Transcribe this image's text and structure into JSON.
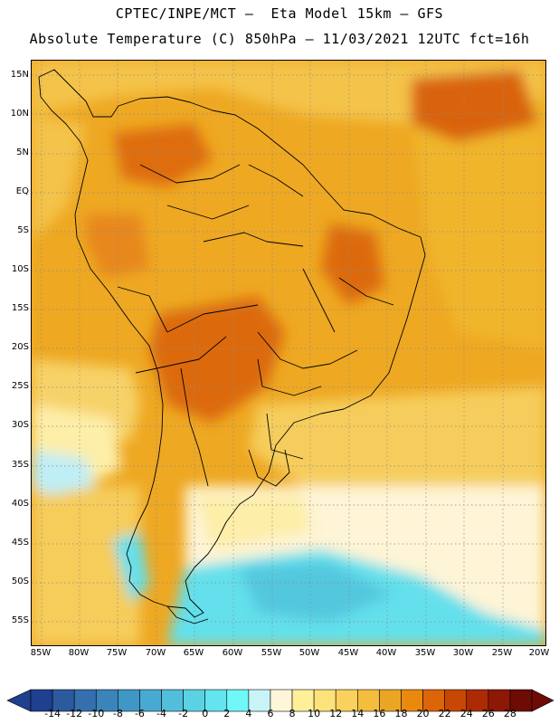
{
  "header": {
    "line1": "CPTEC/INPE/MCT –  Eta Model 15km – GFS",
    "line2": "Absolute Temperature (C) 850hPa – 11/03/2021 12UTC fct=16h"
  },
  "axes": {
    "lat_labels": [
      "15N",
      "10N",
      "5N",
      "EQ",
      "5S",
      "10S",
      "15S",
      "20S",
      "25S",
      "30S",
      "35S",
      "40S",
      "45S",
      "50S",
      "55S"
    ],
    "lon_labels": [
      "85W",
      "80W",
      "75W",
      "70W",
      "65W",
      "60W",
      "55W",
      "50W",
      "45W",
      "40W",
      "35W",
      "30W",
      "25W",
      "20W"
    ],
    "lat_range": [
      -58,
      16
    ],
    "lon_range": [
      -86,
      -20
    ],
    "grid": "dotted"
  },
  "colorbar": {
    "values": [
      "-14",
      "-12",
      "-10",
      "-8",
      "-6",
      "-4",
      "-2",
      "0",
      "2",
      "4",
      "6",
      "8",
      "10",
      "12",
      "14",
      "16",
      "18",
      "20",
      "22",
      "24",
      "26",
      "28"
    ],
    "colors": [
      "#1f3f8f",
      "#2c5a9f",
      "#3470ad",
      "#3a84ba",
      "#3f97c6",
      "#48aad2",
      "#52bedb",
      "#5bd2e4",
      "#63e4ee",
      "#70f7f7",
      "#c8f3f7",
      "#fff6d9",
      "#ffef99",
      "#fde17a",
      "#fad15c",
      "#f3bd3e",
      "#eaa623",
      "#e98a0f",
      "#dc6507",
      "#c94705",
      "#ad2b04",
      "#8c1805",
      "#6d0b04"
    ]
  }
}
